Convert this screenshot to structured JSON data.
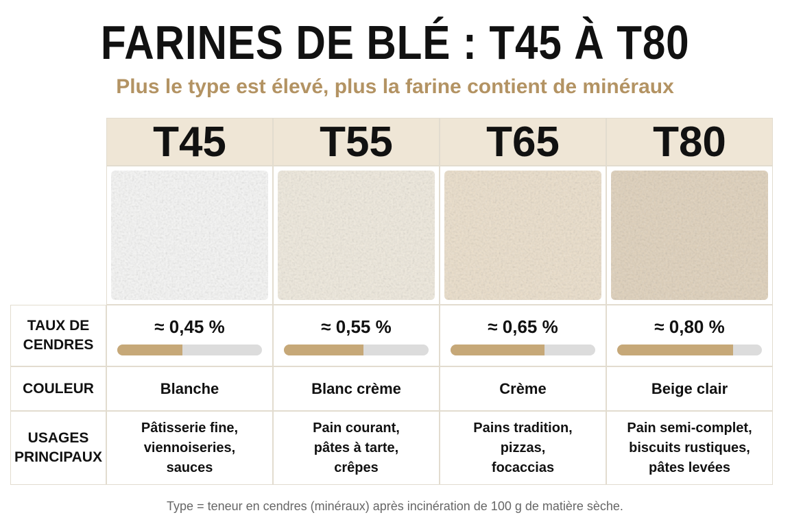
{
  "header": {
    "title": "FARINES DE BLÉ : T45 À T80",
    "subtitle": "Plus le type est élevé, plus la farine contient de minéraux"
  },
  "row_labels": {
    "ash": [
      "TAUX DE",
      "CENDRES"
    ],
    "color": [
      "COULEUR"
    ],
    "uses": [
      "USAGES",
      "PRINCIPAUX"
    ]
  },
  "columns": [
    {
      "name": "T45",
      "ash": 0.45,
      "ash_label": "≈ 0,45 %",
      "color": "Blanche",
      "uses": [
        "Pâtisserie fine,",
        "viennoiseries,",
        "sauces"
      ]
    },
    {
      "name": "T55",
      "ash": 0.55,
      "ash_label": "≈ 0,55 %",
      "color": "Blanc crème",
      "uses": [
        "Pain courant,",
        "pâtes à tarte,",
        "crêpes"
      ]
    },
    {
      "name": "T65",
      "ash": 0.65,
      "ash_label": "≈ 0,65 %",
      "color": "Crème",
      "uses": [
        "Pains tradition,",
        "pizzas,",
        "focaccias"
      ]
    },
    {
      "name": "T80",
      "ash": 0.8,
      "ash_label": "≈ 0,80 %",
      "color": "Beige clair",
      "uses": [
        "Pain semi-complet,",
        "biscuits rustiques,",
        "pâtes levées"
      ]
    }
  ],
  "footnote": "Type = teneur en cendres (minéraux) après incinération de 100 g de matière sèche."
}
